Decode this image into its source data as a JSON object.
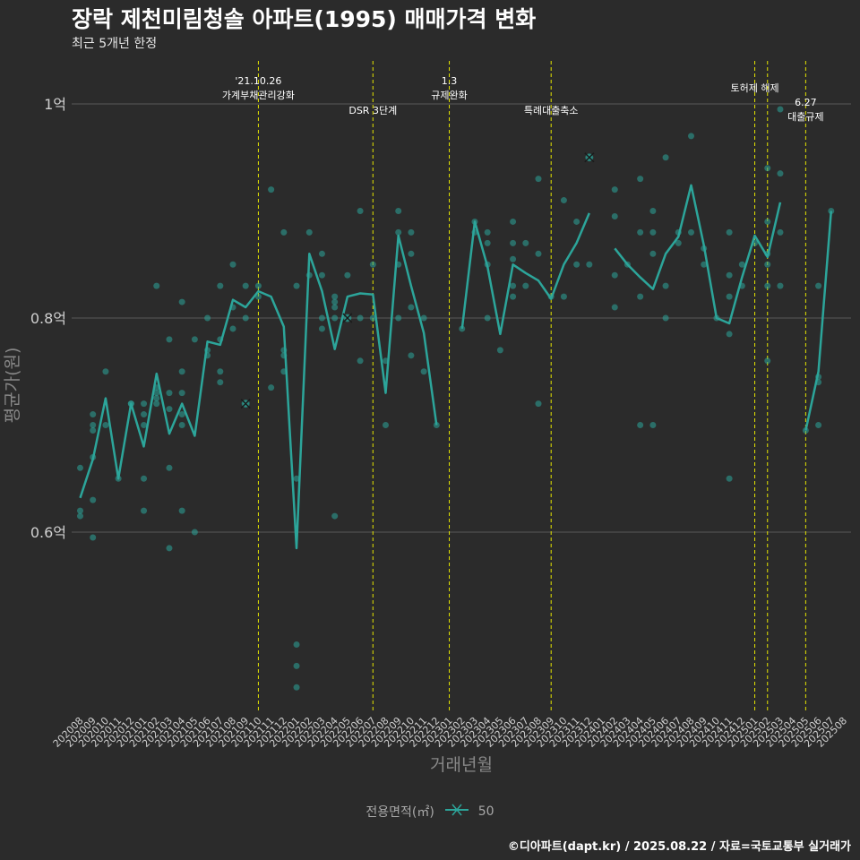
{
  "title": "장락 제천미림청솔 아파트(1995) 매매가격 변화",
  "subtitle": "최근 5개년 한정",
  "caption": "©디아파트(dapt.kr) / 2025.08.22 / 자료=국토교통부 실거래가",
  "colors": {
    "background": "#2b2b2b",
    "series": "#2ca59a",
    "vline": "#e5e500",
    "grid": "#5a5a5a"
  },
  "chart_data": {
    "type": "line",
    "xlabel": "거래년월",
    "ylabel": "평균가(원)",
    "x_categories": [
      "202008",
      "202009",
      "202010",
      "202011",
      "202012",
      "202101",
      "202102",
      "202103",
      "202104",
      "202105",
      "202106",
      "202107",
      "202108",
      "202109",
      "202110",
      "202111",
      "202112",
      "202201",
      "202202",
      "202203",
      "202204",
      "202205",
      "202206",
      "202207",
      "202208",
      "202209",
      "202210",
      "202211",
      "202212",
      "202301",
      "202302",
      "202303",
      "202304",
      "202305",
      "202306",
      "202307",
      "202308",
      "202309",
      "202310",
      "202311",
      "202312",
      "202401",
      "202402",
      "202403",
      "202404",
      "202405",
      "202406",
      "202407",
      "202408",
      "202409",
      "202410",
      "202411",
      "202412",
      "202501",
      "202502",
      "202503",
      "202504",
      "202505",
      "202506",
      "202507",
      "202508"
    ],
    "y_ticks": [
      {
        "value": 0.6,
        "label": "0.6억"
      },
      {
        "value": 0.8,
        "label": "0.8억"
      },
      {
        "value": 1.0,
        "label": "1억"
      }
    ],
    "y_range": [
      0.44,
      1.08
    ],
    "legend": {
      "title": "전용면적(㎡)",
      "series": [
        "50"
      ],
      "position": "bottom"
    },
    "series": [
      {
        "name": "50",
        "avg_line": [
          [
            0,
            0.632
          ],
          [
            1,
            0.668
          ],
          [
            2,
            0.725
          ],
          [
            3,
            0.65
          ],
          [
            4,
            0.72
          ],
          [
            5,
            0.68
          ],
          [
            6,
            0.748
          ],
          [
            7,
            0.692
          ],
          [
            8,
            0.72
          ],
          [
            9,
            0.69
          ],
          [
            10,
            0.778
          ],
          [
            11,
            0.775
          ],
          [
            12,
            0.817
          ],
          [
            13,
            0.81
          ],
          [
            14,
            0.825
          ],
          [
            15,
            0.82
          ],
          [
            16,
            0.792
          ],
          [
            17,
            0.585
          ],
          [
            18,
            0.86
          ],
          [
            19,
            0.825
          ],
          [
            20,
            0.771
          ],
          [
            21,
            0.82
          ],
          [
            22,
            0.823
          ],
          [
            23,
            0.822
          ],
          [
            24,
            0.73
          ],
          [
            25,
            0.877
          ],
          [
            26,
            0.83
          ],
          [
            27,
            0.786
          ],
          [
            28,
            0.7
          ],
          null,
          [
            30,
            0.79
          ],
          [
            31,
            0.89
          ],
          [
            32,
            0.848
          ],
          [
            33,
            0.785
          ],
          [
            34,
            0.85
          ],
          [
            35,
            0.842
          ],
          [
            36,
            0.835
          ],
          [
            37,
            0.818
          ],
          [
            38,
            0.85
          ],
          [
            39,
            0.87
          ],
          [
            40,
            0.898
          ],
          null,
          [
            42,
            0.865
          ],
          [
            43,
            0.85
          ],
          [
            44,
            0.838
          ],
          [
            45,
            0.827
          ],
          [
            46,
            0.86
          ],
          [
            47,
            0.876
          ],
          [
            48,
            0.924
          ],
          [
            49,
            0.868
          ],
          [
            50,
            0.8
          ],
          [
            51,
            0.795
          ],
          [
            52,
            0.838
          ],
          [
            53,
            0.877
          ],
          [
            54,
            0.857
          ],
          [
            55,
            0.908
          ],
          null,
          [
            57,
            0.695
          ],
          [
            58,
            0.75
          ],
          [
            59,
            0.9
          ]
        ],
        "transactions": [
          [
            0,
            0.66
          ],
          [
            0,
            0.62
          ],
          [
            0,
            0.615
          ],
          [
            1,
            0.595
          ],
          [
            1,
            0.63
          ],
          [
            1,
            0.67
          ],
          [
            1,
            0.695
          ],
          [
            1,
            0.7
          ],
          [
            1,
            0.71
          ],
          [
            2,
            0.75
          ],
          [
            2,
            0.7
          ],
          [
            3,
            0.65
          ],
          [
            4,
            0.72
          ],
          [
            4,
            0.72
          ],
          [
            5,
            0.62
          ],
          [
            5,
            0.65
          ],
          [
            5,
            0.7
          ],
          [
            5,
            0.71
          ],
          [
            5,
            0.72
          ],
          [
            6,
            0.83
          ],
          [
            6,
            0.73
          ],
          [
            6,
            0.72
          ],
          [
            6,
            0.725
          ],
          [
            6,
            0.735
          ],
          [
            7,
            0.585
          ],
          [
            7,
            0.66
          ],
          [
            7,
            0.715
          ],
          [
            7,
            0.73
          ],
          [
            7,
            0.78
          ],
          [
            8,
            0.62
          ],
          [
            8,
            0.7
          ],
          [
            8,
            0.71
          ],
          [
            8,
            0.73
          ],
          [
            8,
            0.75
          ],
          [
            8,
            0.815
          ],
          [
            9,
            0.6
          ],
          [
            9,
            0.78
          ],
          [
            10,
            0.765
          ],
          [
            10,
            0.77
          ],
          [
            10,
            0.8
          ],
          [
            11,
            0.74
          ],
          [
            11,
            0.75
          ],
          [
            11,
            0.78
          ],
          [
            11,
            0.83
          ],
          [
            12,
            0.79
          ],
          [
            12,
            0.81
          ],
          [
            12,
            0.85
          ],
          [
            13,
            0.72
          ],
          [
            13,
            0.8
          ],
          [
            13,
            0.83
          ],
          [
            14,
            0.82
          ],
          [
            14,
            0.83
          ],
          [
            15,
            0.735
          ],
          [
            15,
            0.92
          ],
          [
            16,
            0.75
          ],
          [
            16,
            0.765
          ],
          [
            16,
            0.77
          ],
          [
            16,
            0.88
          ],
          [
            17,
            0.455
          ],
          [
            17,
            0.475
          ],
          [
            17,
            0.495
          ],
          [
            17,
            0.65
          ],
          [
            17,
            0.83
          ],
          [
            18,
            0.84
          ],
          [
            18,
            0.88
          ],
          [
            19,
            0.79
          ],
          [
            19,
            0.8
          ],
          [
            19,
            0.84
          ],
          [
            19,
            0.86
          ],
          [
            20,
            0.615
          ],
          [
            20,
            0.8
          ],
          [
            20,
            0.81
          ],
          [
            20,
            0.815
          ],
          [
            20,
            0.82
          ],
          [
            21,
            0.8
          ],
          [
            21,
            0.84
          ],
          [
            22,
            0.76
          ],
          [
            22,
            0.8
          ],
          [
            22,
            0.9
          ],
          [
            23,
            0.8
          ],
          [
            23,
            0.85
          ],
          [
            24,
            0.7
          ],
          [
            24,
            0.76
          ],
          [
            25,
            0.8
          ],
          [
            25,
            0.85
          ],
          [
            25,
            0.88
          ],
          [
            25,
            0.9
          ],
          [
            26,
            0.765
          ],
          [
            26,
            0.81
          ],
          [
            26,
            0.86
          ],
          [
            26,
            0.88
          ],
          [
            27,
            0.75
          ],
          [
            27,
            0.8
          ],
          [
            28,
            0.7
          ],
          [
            30,
            0.79
          ],
          [
            31,
            0.88
          ],
          [
            31,
            0.89
          ],
          [
            32,
            0.8
          ],
          [
            32,
            0.85
          ],
          [
            32,
            0.87
          ],
          [
            32,
            0.88
          ],
          [
            33,
            0.77
          ],
          [
            34,
            0.82
          ],
          [
            34,
            0.83
          ],
          [
            34,
            0.855
          ],
          [
            34,
            0.87
          ],
          [
            34,
            0.89
          ],
          [
            35,
            0.83
          ],
          [
            35,
            0.87
          ],
          [
            36,
            0.72
          ],
          [
            36,
            0.86
          ],
          [
            36,
            0.93
          ],
          [
            37,
            0.82
          ],
          [
            38,
            0.82
          ],
          [
            38,
            0.91
          ],
          [
            39,
            0.85
          ],
          [
            39,
            0.89
          ],
          [
            40,
            0.85
          ],
          [
            40,
            0.95
          ],
          [
            42,
            0.81
          ],
          [
            42,
            0.84
          ],
          [
            42,
            0.895
          ],
          [
            42,
            0.92
          ],
          [
            43,
            0.85
          ],
          [
            44,
            0.7
          ],
          [
            44,
            0.82
          ],
          [
            44,
            0.88
          ],
          [
            44,
            0.93
          ],
          [
            45,
            0.7
          ],
          [
            45,
            0.86
          ],
          [
            45,
            0.88
          ],
          [
            45,
            0.9
          ],
          [
            46,
            0.8
          ],
          [
            46,
            0.83
          ],
          [
            46,
            0.95
          ],
          [
            47,
            0.87
          ],
          [
            47,
            0.88
          ],
          [
            48,
            0.88
          ],
          [
            48,
            0.97
          ],
          [
            49,
            0.85
          ],
          [
            49,
            0.865
          ],
          [
            50,
            0.8
          ],
          [
            51,
            0.65
          ],
          [
            51,
            0.785
          ],
          [
            51,
            0.82
          ],
          [
            51,
            0.84
          ],
          [
            51,
            0.88
          ],
          [
            52,
            0.83
          ],
          [
            52,
            0.85
          ],
          [
            53,
            0.87
          ],
          [
            54,
            0.76
          ],
          [
            54,
            0.83
          ],
          [
            54,
            0.85
          ],
          [
            54,
            0.86
          ],
          [
            54,
            0.89
          ],
          [
            54,
            0.94
          ],
          [
            55,
            0.83
          ],
          [
            55,
            0.88
          ],
          [
            55,
            0.935
          ],
          [
            55,
            0.995
          ],
          [
            57,
            0.695
          ],
          [
            58,
            0.7
          ],
          [
            58,
            0.74
          ],
          [
            58,
            0.745
          ],
          [
            58,
            0.83
          ],
          [
            59,
            0.9
          ]
        ],
        "highlighted": [
          [
            13,
            0.72
          ],
          [
            21,
            0.8
          ],
          [
            40,
            0.95
          ]
        ]
      }
    ],
    "vlines": [
      {
        "x": 14.0,
        "label": [
          "'21.10.26",
          "가계부채관리강화"
        ],
        "row": 0
      },
      {
        "x": 23.0,
        "label": [
          "DSR 3단계"
        ],
        "row": 1
      },
      {
        "x": 29.0,
        "label": [
          "1.3",
          "규제완화"
        ],
        "row": 0
      },
      {
        "x": 37.0,
        "label": [
          "특례대출축소"
        ],
        "row": 1
      },
      {
        "x": 53.0,
        "label": [
          "토허제 해제"
        ],
        "row": 0
      },
      {
        "x": 54.0,
        "label": [],
        "row": 0
      },
      {
        "x": 57.0,
        "label": [
          "6.27",
          "대출규제"
        ],
        "row": 1
      }
    ]
  }
}
